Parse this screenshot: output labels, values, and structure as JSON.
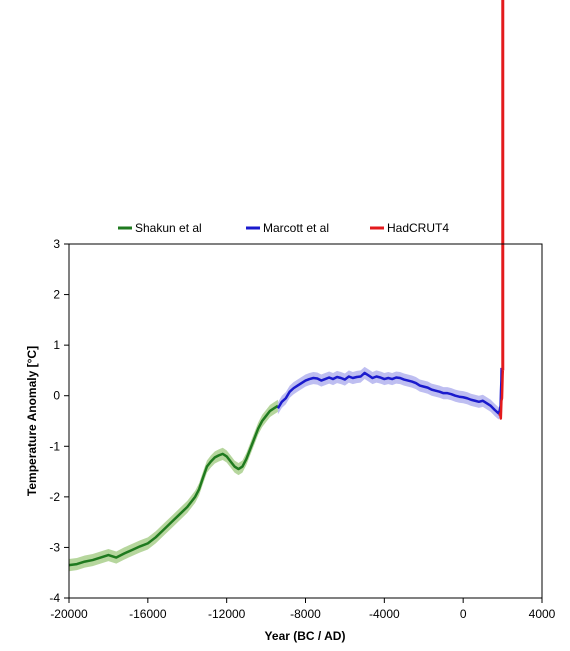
{
  "chart_data": {
    "type": "line",
    "title": "",
    "xlabel": "Year (BC / AD)",
    "ylabel": "Temperature Anomaly [°C]",
    "xlim": [
      -20000,
      4000
    ],
    "ylim": [
      -4,
      3
    ],
    "xticks": [
      -20000,
      -16000,
      -12000,
      -8000,
      -4000,
      0,
      4000
    ],
    "yticks": [
      3,
      2,
      1,
      0,
      -1,
      -2,
      -3,
      -4
    ],
    "grid": false,
    "legend_position": "top",
    "series": [
      {
        "name": "Shakun et al",
        "color": "#1f7a1f",
        "band_color": "#a9cf8c",
        "uncertainty": 0.12,
        "x": [
          -20000,
          -19600,
          -19200,
          -18800,
          -18400,
          -18000,
          -17600,
          -17200,
          -16800,
          -16400,
          -16000,
          -15600,
          -15200,
          -14800,
          -14400,
          -14000,
          -13600,
          -13400,
          -13200,
          -13000,
          -12800,
          -12600,
          -12400,
          -12200,
          -12000,
          -11800,
          -11600,
          -11400,
          -11200,
          -11000,
          -10800,
          -10600,
          -10400,
          -10200,
          -10000,
          -9800,
          -9600,
          -9400
        ],
        "y": [
          -3.35,
          -3.33,
          -3.28,
          -3.25,
          -3.2,
          -3.15,
          -3.2,
          -3.12,
          -3.05,
          -2.98,
          -2.92,
          -2.8,
          -2.65,
          -2.5,
          -2.35,
          -2.2,
          -2.0,
          -1.85,
          -1.62,
          -1.4,
          -1.3,
          -1.22,
          -1.18,
          -1.15,
          -1.2,
          -1.3,
          -1.4,
          -1.45,
          -1.4,
          -1.25,
          -1.05,
          -0.85,
          -0.65,
          -0.5,
          -0.4,
          -0.3,
          -0.25,
          -0.2
        ]
      },
      {
        "name": "Marcott et al",
        "color": "#1a1acd",
        "band_color": "#b3b3ef",
        "uncertainty": 0.12,
        "x": [
          -9400,
          -9200,
          -9000,
          -8800,
          -8600,
          -8400,
          -8200,
          -8000,
          -7800,
          -7600,
          -7400,
          -7200,
          -7000,
          -6800,
          -6600,
          -6400,
          -6200,
          -6000,
          -5800,
          -5600,
          -5400,
          -5200,
          -5000,
          -4800,
          -4600,
          -4400,
          -4200,
          -4000,
          -3800,
          -3600,
          -3400,
          -3200,
          -3000,
          -2800,
          -2600,
          -2400,
          -2200,
          -2000,
          -1800,
          -1600,
          -1400,
          -1200,
          -1000,
          -800,
          -600,
          -400,
          -200,
          0,
          200,
          400,
          600,
          800,
          1000,
          1200,
          1400,
          1600,
          1800,
          1850,
          1900,
          1920,
          1940,
          1950
        ],
        "y": [
          -0.25,
          -0.12,
          -0.05,
          0.08,
          0.15,
          0.2,
          0.25,
          0.3,
          0.33,
          0.35,
          0.34,
          0.3,
          0.33,
          0.36,
          0.33,
          0.37,
          0.35,
          0.32,
          0.38,
          0.35,
          0.37,
          0.38,
          0.45,
          0.4,
          0.35,
          0.38,
          0.36,
          0.33,
          0.35,
          0.33,
          0.36,
          0.35,
          0.32,
          0.3,
          0.28,
          0.25,
          0.2,
          0.18,
          0.16,
          0.12,
          0.1,
          0.08,
          0.05,
          0.05,
          0.03,
          0.0,
          -0.02,
          -0.03,
          -0.05,
          -0.08,
          -0.1,
          -0.12,
          -0.1,
          -0.15,
          -0.2,
          -0.28,
          -0.35,
          -0.3,
          -0.2,
          0.1,
          0.3,
          0.55
        ]
      },
      {
        "name": "HadCRUT4",
        "color": "#e31a1c",
        "uncertainty": 0,
        "x": [
          1850,
          1880,
          1910,
          1940,
          1970,
          2000,
          2010
        ],
        "y": [
          -0.4,
          -0.35,
          -0.45,
          -0.1,
          -0.05,
          0.4,
          0.5
        ]
      }
    ]
  },
  "extra_lines": [
    {
      "name": "vertical-red-line",
      "color": "#e31a1c",
      "x": 2010,
      "y_from": 0.5,
      "y_to": 3.0
    }
  ]
}
